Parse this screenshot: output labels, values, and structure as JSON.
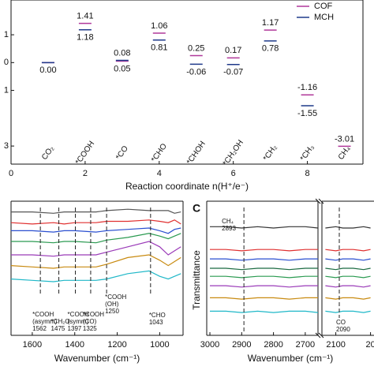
{
  "chart_data": [
    {
      "type": "energy_levels",
      "xlabel": "Reaction coordinate n(H⁺/e⁻)",
      "x": [
        1,
        2,
        3,
        4,
        5,
        6,
        7,
        8,
        9
      ],
      "categories": [
        "CO₂",
        "*COOH",
        "*CO",
        "*CHO",
        "*CHOH",
        "*CH₂OH",
        "*CH₂",
        "*CH₃",
        "CH₄"
      ],
      "category_color": "#2e8b2e",
      "series": [
        {
          "name": "COF",
          "color": "#b0389a",
          "values": [
            0.0,
            1.41,
            0.05,
            1.06,
            0.25,
            0.17,
            1.17,
            -1.16,
            -3.01
          ],
          "value_labels": [
            "0.00",
            "1.41",
            "0.05",
            "1.06",
            "0.25",
            "0.17",
            "1.17",
            "-1.16",
            "-3.01"
          ]
        },
        {
          "name": "MCH",
          "color": "#1f3a8a",
          "values": [
            0.0,
            1.18,
            0.08,
            0.81,
            -0.06,
            -0.07,
            0.78,
            -1.55,
            null
          ],
          "value_labels": [
            null,
            "1.18",
            "0.08",
            "0.81",
            "-0.06",
            "-0.07",
            "0.78",
            "-1.55",
            null
          ]
        }
      ],
      "xlim": [
        0,
        9.5
      ],
      "xticks": [
        0,
        2,
        4,
        6,
        8
      ],
      "ylim": [
        -3.65,
        2.25
      ],
      "yticks": [
        1,
        0,
        {
          "value": -1,
          "label": "1"
        },
        {
          "value": -3,
          "label": "3"
        }
      ],
      "legend": "upper right"
    },
    {
      "type": "spectra",
      "xlabel": "Wavenumber (cm⁻¹)",
      "xlim": [
        1700,
        890
      ],
      "xticks": [
        1600,
        1400,
        1200,
        1000
      ],
      "ylim": [
        0,
        100
      ],
      "x": [
        1700,
        1600,
        1500,
        1450,
        1400,
        1300,
        1250,
        1150,
        1050,
        1000,
        960,
        930,
        900
      ],
      "series": [
        {
          "color": "#555555",
          "values": [
            92,
            92,
            91,
            92,
            92,
            92,
            93,
            94,
            93,
            93,
            93,
            91,
            92
          ]
        },
        {
          "color": "#e03030",
          "values": [
            84,
            83,
            84,
            83,
            84,
            84,
            85,
            85,
            86,
            85,
            84,
            86,
            83
          ]
        },
        {
          "color": "#2a4fd0",
          "values": [
            78,
            78,
            77,
            78,
            78,
            77,
            78,
            79,
            80,
            78,
            76,
            79,
            80
          ]
        },
        {
          "color": "#2a9a50",
          "values": [
            70,
            70,
            69,
            70,
            70,
            69,
            71,
            73,
            76,
            74,
            72,
            74,
            76
          ]
        },
        {
          "color": "#9a3ab8",
          "values": [
            60,
            60,
            59,
            60,
            60,
            60,
            62,
            66,
            70,
            66,
            60,
            63,
            66
          ]
        },
        {
          "color": "#c88a10",
          "values": [
            52,
            51,
            50,
            51,
            51,
            51,
            53,
            58,
            60,
            56,
            52,
            55,
            58
          ]
        },
        {
          "color": "#20b8c8",
          "values": [
            42,
            41,
            40,
            41,
            41,
            41,
            42,
            46,
            48,
            44,
            42,
            44,
            46
          ]
        }
      ],
      "annotations": [
        {
          "x": 1562,
          "lines": [
            "*COOH",
            "(asymm)",
            "1562"
          ]
        },
        {
          "x": 1475,
          "lines": [
            "*CH₂O",
            "1475"
          ]
        },
        {
          "x": 1397,
          "lines": [
            "*COOH",
            "(symm)",
            "1397"
          ]
        },
        {
          "x": 1325,
          "lines": [
            "*COOH",
            "(CO)",
            "1325"
          ]
        },
        {
          "x": 1250,
          "lines": [
            "*COOH",
            "(OH)",
            "1250"
          ]
        },
        {
          "x": 1043,
          "lines": [
            "*CHO",
            "1043"
          ]
        }
      ]
    },
    {
      "type": "spectra",
      "panel": "C",
      "ylabel": "Transmittance",
      "xlabel": "Wavenumber (cm⁻¹)",
      "xlim": [
        3010,
        2660
      ],
      "xticks": [
        3000,
        2900,
        2800,
        2700
      ],
      "ylim": [
        0,
        100
      ],
      "x": [
        3000,
        2950,
        2900,
        2850,
        2800,
        2750,
        2700,
        2660
      ],
      "series": [
        {
          "color": "#333333",
          "values": [
            81,
            81,
            80,
            81,
            80,
            81,
            81,
            80
          ]
        },
        {
          "color": "#e03030",
          "values": [
            64,
            64,
            63,
            64,
            64,
            63,
            64,
            64
          ]
        },
        {
          "color": "#2a4fd0",
          "values": [
            57,
            57,
            56,
            57,
            57,
            56,
            57,
            57
          ]
        },
        {
          "color": "#1a6a40",
          "values": [
            50,
            50,
            49,
            50,
            50,
            49,
            50,
            50
          ]
        },
        {
          "color": "#2a9a50",
          "values": [
            44,
            44,
            43,
            44,
            44,
            43,
            44,
            44
          ]
        },
        {
          "color": "#9a3ab8",
          "values": [
            37,
            37,
            36,
            37,
            37,
            36,
            37,
            37
          ]
        },
        {
          "color": "#c88a10",
          "values": [
            28,
            28,
            27,
            28,
            28,
            27,
            28,
            28
          ]
        },
        {
          "color": "#20b8c8",
          "values": [
            18,
            18,
            17,
            18,
            17,
            18,
            18,
            17
          ]
        }
      ],
      "annotations": [
        {
          "x": 2893,
          "lines": [
            "CH₄",
            "2893"
          ],
          "place": "top"
        }
      ]
    },
    {
      "type": "spectra",
      "xlim": [
        2140,
        1990
      ],
      "xticks": [
        2100,
        {
          "value": 2000,
          "label": "20"
        }
      ],
      "ylim": [
        0,
        100
      ],
      "x": [
        2130,
        2100,
        2080,
        2050,
        2020,
        2000
      ],
      "series": [
        {
          "color": "#333333",
          "values": [
            80,
            81,
            80,
            80,
            81,
            80
          ]
        },
        {
          "color": "#e03030",
          "values": [
            64,
            63,
            64,
            64,
            63,
            64
          ]
        },
        {
          "color": "#2a4fd0",
          "values": [
            57,
            56,
            57,
            57,
            56,
            57
          ]
        },
        {
          "color": "#1a6a40",
          "values": [
            50,
            49,
            50,
            50,
            49,
            50
          ]
        },
        {
          "color": "#2a9a50",
          "values": [
            44,
            43,
            44,
            44,
            43,
            44
          ]
        },
        {
          "color": "#9a3ab8",
          "values": [
            37,
            36,
            37,
            37,
            36,
            37
          ]
        },
        {
          "color": "#c88a10",
          "values": [
            28,
            27,
            28,
            28,
            27,
            28
          ]
        },
        {
          "color": "#20b8c8",
          "values": [
            18,
            17,
            18,
            18,
            17,
            18
          ]
        }
      ],
      "annotations": [
        {
          "x": 2090,
          "lines": [
            "CO",
            "2090"
          ],
          "place": "bottom"
        }
      ]
    }
  ]
}
